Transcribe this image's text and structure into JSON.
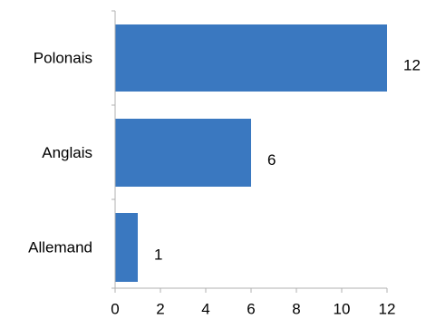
{
  "chart_data": {
    "type": "bar",
    "orientation": "horizontal",
    "categories": [
      "Polonais",
      "Anglais",
      "Allemand"
    ],
    "values": [
      12,
      6,
      1
    ],
    "data_labels": [
      "12",
      "6",
      "1"
    ],
    "xticks": [
      "0",
      "2",
      "4",
      "6",
      "8",
      "10",
      "12"
    ],
    "xlim": [
      0,
      12
    ],
    "title": "",
    "xlabel": "",
    "ylabel": "",
    "grid": false,
    "legend": "none",
    "colors": {
      "bar": "#3a78c0",
      "axis": "#b0b0b0",
      "text": "#000000"
    }
  }
}
